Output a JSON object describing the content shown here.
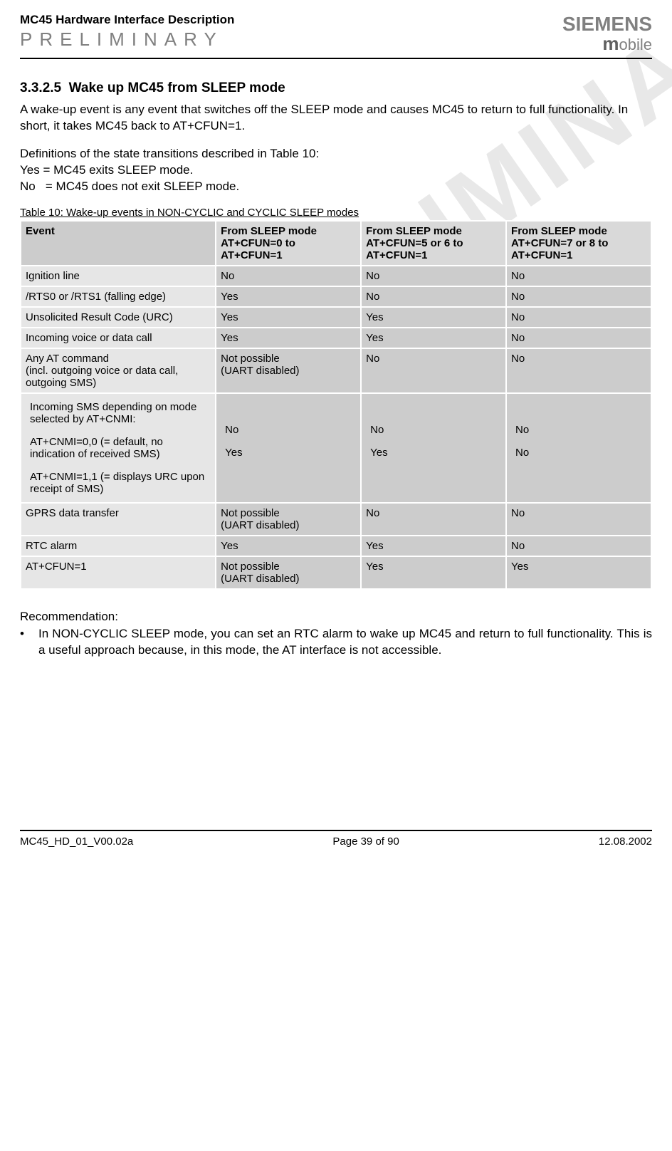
{
  "watermark_text": "PRELIMINARY",
  "header": {
    "doc_title": "MC45 Hardware Interface Description",
    "preliminary": "PRELIMINARY",
    "logo_siemens": "SIEMENS",
    "logo_mobile_m": "m",
    "logo_mobile_rest": "obile"
  },
  "section": {
    "number": "3.3.2.5",
    "title": "Wake up MC45 from SLEEP mode"
  },
  "para1": "A wake-up event is any event that switches off the SLEEP mode and causes MC45 to return to full functionality. In short, it takes MC45 back to AT+CFUN=1.",
  "para2": "Definitions of the state transitions described in Table 10:",
  "para3": "Yes = MC45 exits SLEEP mode.",
  "para4": "No   = MC45 does not exit SLEEP mode.",
  "table_caption": "Table 10: Wake-up events in NON-CYCLIC and CYCLIC SLEEP modes",
  "table": {
    "headers": {
      "c0": "Event",
      "c1": "From SLEEP mode AT+CFUN=0 to AT+CFUN=1",
      "c2": "From SLEEP mode AT+CFUN=5 or 6 to AT+CFUN=1",
      "c3": "From SLEEP mode AT+CFUN=7 or 8 to AT+CFUN=1"
    },
    "rows": [
      {
        "ev": "Ignition line",
        "c1": "No",
        "c2": "No",
        "c3": "No"
      },
      {
        "ev": "/RTS0 or /RTS1 (falling edge)",
        "c1": "Yes",
        "c2": "No",
        "c3": "No"
      },
      {
        "ev": "Unsolicited Result Code (URC)",
        "c1": "Yes",
        "c2": "Yes",
        "c3": "No"
      },
      {
        "ev": "Incoming voice or data call",
        "c1": "Yes",
        "c2": "Yes",
        "c3": "No"
      },
      {
        "ev": "Any AT command\n(incl. outgoing voice or data call, outgoing SMS)",
        "c1": "Not possible\n(UART disabled)",
        "c2": "No",
        "c3": "No"
      }
    ],
    "sms_header": "Incoming SMS depending on mode selected by AT+CNMI:",
    "sms_row_a": {
      "ev": "AT+CNMI=0,0 (= default, no indication of received SMS)",
      "c1": "No",
      "c2": "No",
      "c3": "No"
    },
    "sms_row_b": {
      "ev": "AT+CNMI=1,1 (= displays URC upon receipt of SMS)",
      "c1": "Yes",
      "c2": "Yes",
      "c3": "No"
    },
    "rows2": [
      {
        "ev": "GPRS data transfer",
        "c1": "Not possible\n(UART disabled)",
        "c2": "No",
        "c3": "No"
      },
      {
        "ev": "RTC alarm",
        "c1": "Yes",
        "c2": "Yes",
        "c3": "No"
      },
      {
        "ev": "AT+CFUN=1",
        "c1": "Not possible\n(UART disabled)",
        "c2": "Yes",
        "c3": "Yes"
      }
    ]
  },
  "recommendation": {
    "heading": "Recommendation:",
    "bullet": "In NON-CYCLIC SLEEP mode, you can set an RTC alarm to wake up MC45 and return to full functionality. This is a useful approach because, in this mode, the AT interface is not accessible."
  },
  "footer": {
    "left": "MC45_HD_01_V00.02a",
    "center": "Page 39 of 90",
    "right": "12.08.2002"
  }
}
